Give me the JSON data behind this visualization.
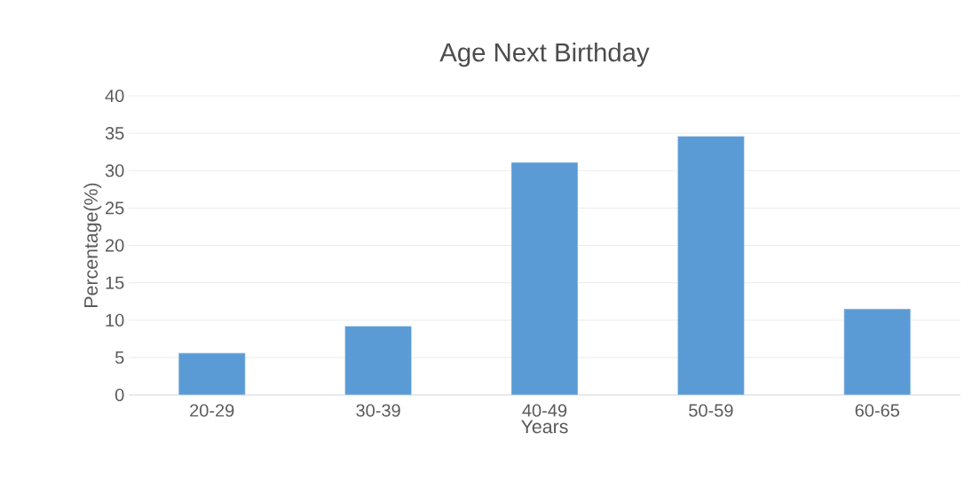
{
  "chart_data": {
    "type": "bar",
    "title": "Age Next Birthday",
    "xlabel": "Years",
    "ylabel": "Percentage(%)",
    "categories": [
      "20-29",
      "30-39",
      "40-49",
      "50-59",
      "60-65"
    ],
    "values": [
      5.6,
      9.2,
      31.1,
      34.6,
      11.5
    ],
    "color": "#5b9bd5",
    "ylim": [
      0,
      40
    ],
    "yticks": [
      0,
      5,
      10,
      15,
      20,
      25,
      30,
      35,
      40
    ],
    "grid": "y"
  }
}
